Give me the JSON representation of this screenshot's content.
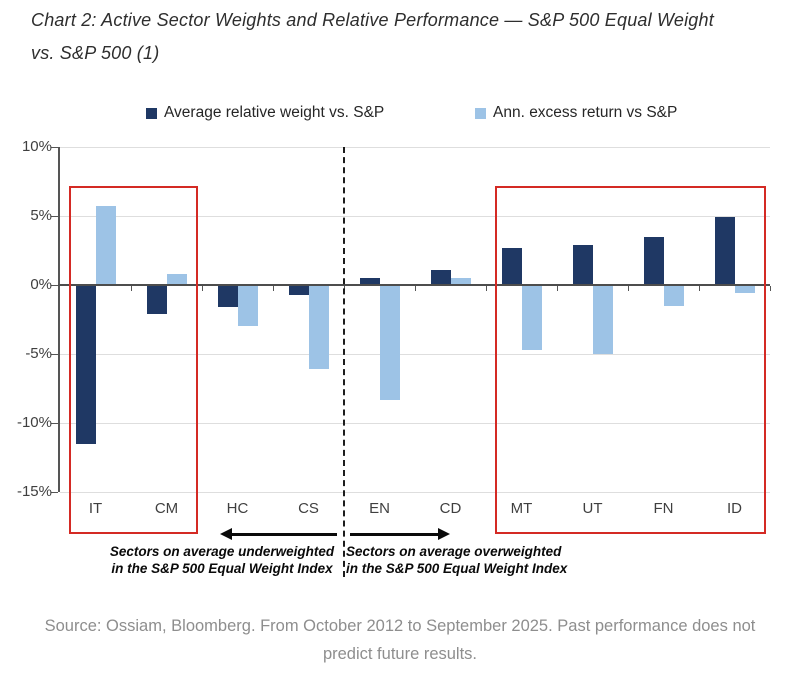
{
  "title": {
    "lines": [
      "Chart 2: Active Sector Weights and Relative Performance — S&P 500 Equal Weight",
      "vs. S&P 500 (1)"
    ]
  },
  "chart_data": {
    "type": "bar",
    "categories": [
      "IT",
      "CM",
      "HC",
      "CS",
      "EN",
      "CD",
      "MT",
      "UT",
      "FN",
      "ID"
    ],
    "series": [
      {
        "name": "Average relative weight vs. S&P",
        "color": "#1f3864",
        "values": [
          -11.5,
          -2.1,
          -1.6,
          -0.7,
          0.5,
          1.1,
          2.7,
          2.9,
          3.5,
          4.9
        ]
      },
      {
        "name": "Ann. excess return vs S&P",
        "color": "#9dc3e6",
        "values": [
          5.7,
          0.8,
          -3.0,
          -6.1,
          -8.3,
          0.5,
          -4.7,
          -5.0,
          -1.5,
          -0.6
        ]
      }
    ],
    "ylim": [
      -15,
      10
    ],
    "yticks": [
      10,
      5,
      0,
      -5,
      -10,
      -15
    ],
    "ytick_labels": [
      "10%",
      "5%",
      "0%",
      "-5%",
      "-10%",
      "-15%"
    ],
    "grid": true,
    "legend_position": "top",
    "divider_after_category_index": 3,
    "highlight_groups": [
      {
        "start": 0,
        "end": 1
      },
      {
        "start": 6,
        "end": 9
      }
    ],
    "highlight_color": "#d42a24"
  },
  "annotations": {
    "underweighted": {
      "lines": [
        "Sectors on average underweighted",
        "in the S&P 500 Equal Weight Index"
      ]
    },
    "overweighted": {
      "lines": [
        "Sectors on average overweighted",
        "in the S&P 500 Equal Weight Index"
      ]
    }
  },
  "source": {
    "lines": [
      "Source: Ossiam, Bloomberg. From October 2012 to September 2025. Past performance does not",
      "predict future results."
    ]
  }
}
